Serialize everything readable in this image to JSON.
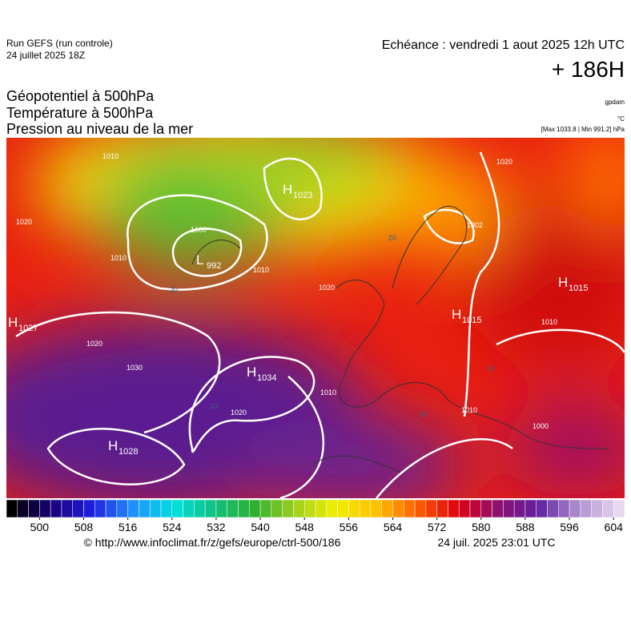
{
  "header": {
    "run": "Run GEFS (run controle)",
    "run_date": "24 juillet 2025 18Z",
    "echeance": "Echéance : vendredi 1 aout 2025 12h UTC",
    "lead": "+ 186H"
  },
  "titles": [
    "Géopotentiel à 500hPa",
    "Température à 500hPa",
    "Pression au niveau de la mer"
  ],
  "units": {
    "geopotential": "gpdam",
    "temperature": "°C",
    "pressure": "[Max 1033.8 | Min 991.2] hPa"
  },
  "centers": [
    {
      "letter": "H",
      "value": 1023
    },
    {
      "letter": "L",
      "value": 992
    },
    {
      "letter": "H",
      "value": 1027
    },
    {
      "letter": "H",
      "value": 1034
    },
    {
      "letter": "H",
      "value": 1028
    },
    {
      "letter": "H",
      "value": 1015
    },
    {
      "letter": "H",
      "value": 1015
    }
  ],
  "isobar_labels": [
    1010,
    1020,
    1000,
    1010,
    1020,
    1010,
    1020,
    1030,
    1020,
    1010,
    1002,
    1020,
    1010,
    1010,
    1000,
    20,
    20,
    10,
    10,
    10
  ],
  "colorbar": {
    "ticks": [
      500,
      508,
      516,
      524,
      532,
      540,
      548,
      556,
      564,
      572,
      580,
      588,
      596,
      604
    ],
    "lim": [
      494,
      606
    ],
    "step": 2,
    "colors": [
      "#000000",
      "#1a007a",
      "#2020e0",
      "#1e90ff",
      "#00e0e0",
      "#10c080",
      "#30b030",
      "#a0d020",
      "#f0f000",
      "#ffc000",
      "#ff6000",
      "#e00010",
      "#901070",
      "#6020a0",
      "#b090d0",
      "#e8d8f0"
    ]
  },
  "footer": {
    "url": "© http://www.infoclimat.fr/z/gefs/europe/ctrl-500/186",
    "generated": "24 juil. 2025 23:01 UTC"
  }
}
